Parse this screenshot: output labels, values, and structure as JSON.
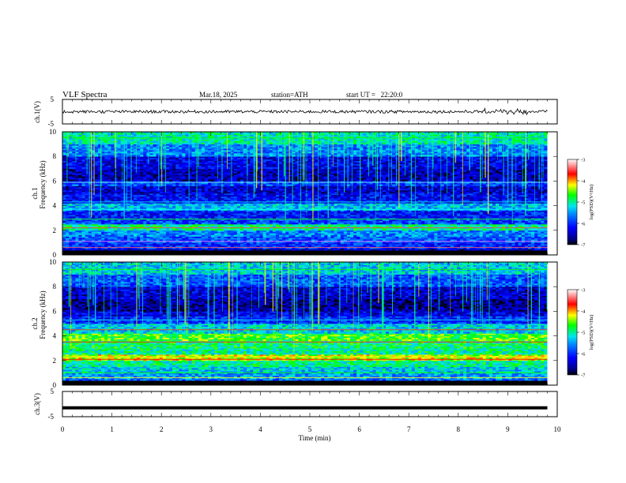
{
  "header": {
    "title": "VLF Spectra",
    "date": "Mar.18, 2025",
    "station": "station=ATH",
    "start": "start UT =   22:20:0"
  },
  "colors": {
    "background": "#ffffff",
    "spectrogram_scale": [
      "#000000",
      "#00008b",
      "#0000ff",
      "#0080ff",
      "#00e5ee",
      "#00ff00",
      "#ffff00",
      "#ff0000",
      "#ffffff"
    ]
  },
  "chart_data": [
    {
      "type": "line",
      "id": "ch1-waveform",
      "ylabel": "ch.1(V)",
      "ylim": [
        -5,
        5
      ],
      "yticks": [
        "5",
        "-5"
      ],
      "xlim": [
        0,
        10
      ],
      "description_series": "noisy waveform around 0 V, amplitude ~1 V",
      "series": [
        {
          "values_rms": 0.6,
          "mean": 0.0
        }
      ]
    },
    {
      "type": "heatmap",
      "id": "ch1-spectrogram",
      "ylabel": "ch.1\nFrequency (kHz)",
      "ylabel_top": "ch.1",
      "ylabel_bottom": "Frequency (kHz)",
      "ylim": [
        0,
        10
      ],
      "yticks": [
        "0",
        "2",
        "4",
        "6",
        "8",
        "10"
      ],
      "xlim": [
        0,
        9.8
      ],
      "colorbar": {
        "label": "log(PSD)(V²/Hz)",
        "ticks": [
          "-3",
          "-4",
          "-5",
          "-6",
          "-7"
        ],
        "range": [
          -7,
          -3
        ]
      },
      "bands": [
        {
          "f_khz": [
            0.0,
            0.5
          ],
          "level": -6.5
        },
        {
          "f_khz": [
            0.5,
            1.0
          ],
          "level": -6.0
        },
        {
          "f_khz": [
            1.0,
            1.5
          ],
          "level": -5.8
        },
        {
          "f_khz": [
            1.5,
            2.0
          ],
          "level": -5.6
        },
        {
          "f_khz": [
            2.0,
            2.5
          ],
          "level": -5.0
        },
        {
          "f_khz": [
            2.5,
            3.0
          ],
          "level": -5.9
        },
        {
          "f_khz": [
            3.0,
            3.6
          ],
          "level": -6.1
        },
        {
          "f_khz": [
            3.6,
            4.2
          ],
          "level": -5.4
        },
        {
          "f_khz": [
            4.2,
            5.0
          ],
          "level": -6.2
        },
        {
          "f_khz": [
            5.0,
            5.6
          ],
          "level": -6.4
        },
        {
          "f_khz": [
            5.6,
            6.0
          ],
          "level": -5.9
        },
        {
          "f_khz": [
            6.0,
            7.0
          ],
          "level": -6.5
        },
        {
          "f_khz": [
            7.0,
            8.0
          ],
          "level": -6.3
        },
        {
          "f_khz": [
            8.0,
            9.0
          ],
          "level": -5.6
        },
        {
          "f_khz": [
            9.0,
            10.0
          ],
          "level": -5.1
        }
      ]
    },
    {
      "type": "heatmap",
      "id": "ch2-spectrogram",
      "ylabel": "ch.2\nFrequency (kHz)",
      "ylabel_top": "ch.2",
      "ylabel_bottom": "Frequency (kHz)",
      "ylim": [
        0,
        10
      ],
      "yticks": [
        "0",
        "2",
        "4",
        "6",
        "8",
        "10"
      ],
      "xlim": [
        0,
        9.8
      ],
      "colorbar": {
        "label": "log(PSD)(V²/Hz)",
        "ticks": [
          "-3",
          "-4",
          "-5",
          "-6",
          "-7"
        ],
        "range": [
          -7,
          -3
        ]
      },
      "bands": [
        {
          "f_khz": [
            0.0,
            0.5
          ],
          "level": -5.8
        },
        {
          "f_khz": [
            0.5,
            1.0
          ],
          "level": -5.5
        },
        {
          "f_khz": [
            1.0,
            1.5
          ],
          "level": -5.3
        },
        {
          "f_khz": [
            1.5,
            2.0
          ],
          "level": -5.0
        },
        {
          "f_khz": [
            2.0,
            2.5
          ],
          "level": -4.3
        },
        {
          "f_khz": [
            2.5,
            3.0
          ],
          "level": -5.0
        },
        {
          "f_khz": [
            3.0,
            3.6
          ],
          "level": -4.9
        },
        {
          "f_khz": [
            3.6,
            4.2
          ],
          "level": -4.6
        },
        {
          "f_khz": [
            4.2,
            5.0
          ],
          "level": -5.3
        },
        {
          "f_khz": [
            5.0,
            5.6
          ],
          "level": -6.0
        },
        {
          "f_khz": [
            5.6,
            6.0
          ],
          "level": -6.3
        },
        {
          "f_khz": [
            6.0,
            7.0
          ],
          "level": -6.6
        },
        {
          "f_khz": [
            7.0,
            8.0
          ],
          "level": -6.4
        },
        {
          "f_khz": [
            8.0,
            9.0
          ],
          "level": -5.8
        },
        {
          "f_khz": [
            9.0,
            10.0
          ],
          "level": -5.3
        }
      ]
    },
    {
      "type": "line",
      "id": "ch3-waveform",
      "ylabel": "ch.3(V)",
      "ylim": [
        -5,
        5
      ],
      "yticks": [
        "5",
        "-5"
      ],
      "xlim": [
        0,
        10
      ],
      "series": [
        {
          "constant": -1.5
        }
      ]
    }
  ],
  "xaxis": {
    "label": "Time (min)",
    "ticks": [
      "0",
      "1",
      "2",
      "3",
      "4",
      "5",
      "6",
      "7",
      "8",
      "9",
      "10"
    ],
    "range": [
      0,
      10
    ]
  }
}
